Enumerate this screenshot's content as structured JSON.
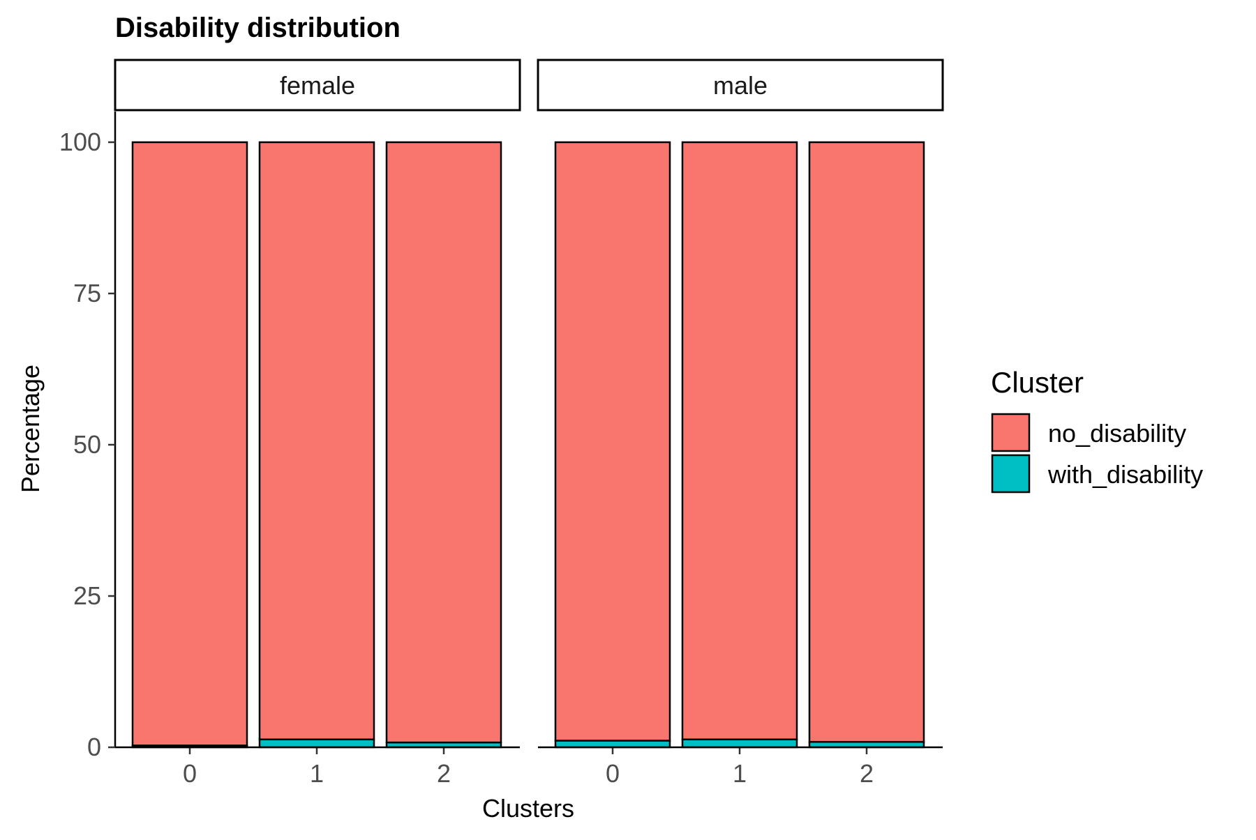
{
  "chart_data": {
    "type": "bar",
    "stacked": true,
    "title": "Disability distribution",
    "xlabel": "Clusters",
    "ylabel": "Percentage",
    "ylim": [
      0,
      100
    ],
    "yticks": [
      0,
      25,
      50,
      75,
      100
    ],
    "categories": [
      "0",
      "1",
      "2"
    ],
    "legend": {
      "title": "Cluster",
      "position": "right",
      "entries": [
        "no_disability",
        "with_disability"
      ]
    },
    "colors": {
      "no_disability": "#F8766D",
      "with_disability": "#00BFC4"
    },
    "panels": [
      {
        "label": "female",
        "series": [
          {
            "name": "with_disability",
            "values": [
              0.3,
              1.3,
              0.8
            ]
          },
          {
            "name": "no_disability",
            "values": [
              99.7,
              98.7,
              99.2
            ]
          }
        ]
      },
      {
        "label": "male",
        "series": [
          {
            "name": "with_disability",
            "values": [
              1.1,
              1.3,
              0.9
            ]
          },
          {
            "name": "no_disability",
            "values": [
              98.9,
              98.7,
              99.1
            ]
          }
        ]
      }
    ]
  }
}
